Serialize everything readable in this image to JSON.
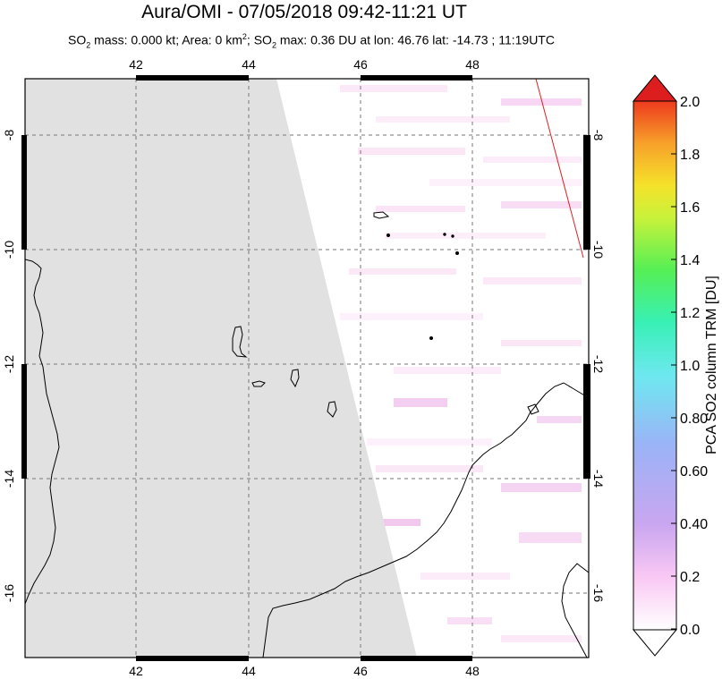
{
  "title": "Aura/OMI - 07/05/2018 09:42-11:21 UT",
  "subtitle": {
    "p1": "SO",
    "s1": "2",
    "p2": " mass: 0.000 kt; Area: 0 km",
    "s2": "2",
    "p3": "; SO",
    "s3": "2",
    "p4": " max: 0.36 DU at lon: 46.76 lat: -14.73 ; 11:19UTC"
  },
  "map": {
    "lon_ticks": [
      "42",
      "44",
      "46",
      "48"
    ],
    "lat_ticks": [
      "-8",
      "-10",
      "-12",
      "-14",
      "-16"
    ],
    "no_data_color": "#e1e1e1",
    "coast_color": "#000000",
    "orbit_edge_color": "#e02020"
  },
  "colorbar": {
    "label": "PCA SO2 column TRM [DU]",
    "ticks": [
      "2.0",
      "1.8",
      "1.6",
      "1.4",
      "1.2",
      "1.0",
      "0.80",
      "0.60",
      "0.40",
      "0.2",
      "0.0"
    ],
    "range": [
      0,
      2.0
    ],
    "colors": [
      "#ffffff",
      "#f9c8f4",
      "#c9a6f0",
      "#9bb3f7",
      "#6ee8f0",
      "#38f0b6",
      "#55ef55",
      "#c9f23a",
      "#f5e22a",
      "#f7a12a",
      "#ee3a1e",
      "#dd1e1e"
    ]
  }
}
